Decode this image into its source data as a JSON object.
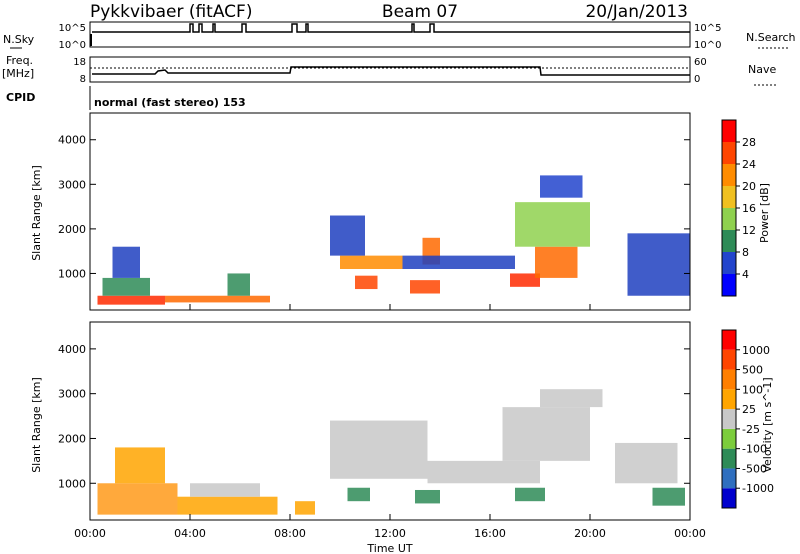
{
  "header": {
    "station": "Pykkvibaer (fitACF)",
    "beam": "Beam 07",
    "date": "20/Jan/2013"
  },
  "strips": {
    "nsky_label": "N.Sky",
    "nsky_ticks": [
      "10^5",
      "10^0"
    ],
    "nsearch_label": "N.Search",
    "nsearch_ticks": [
      "10^5",
      "10^0"
    ],
    "freq_label": "Freq.",
    "freq_unit": "[MHz]",
    "freq_ticks": [
      "18",
      "8"
    ],
    "nave_label": "Nave",
    "nave_ticks": [
      "60",
      "0"
    ],
    "cpid_label": "CPID",
    "cpid_text": "normal (fast stereo) 153"
  },
  "chart_data": [
    {
      "type": "heatmap",
      "name": "power",
      "ylabel": "Slant Range [km]",
      "ylim": [
        180,
        4600
      ],
      "y_ticks": [
        "4000",
        "3000",
        "2000",
        "1000"
      ],
      "colorbar_label": "Power [dB]",
      "colorbar_ticks": [
        "28",
        "24",
        "20",
        "16",
        "12",
        "8",
        "4"
      ],
      "colorbar_colors": [
        "#0000ff",
        "#2244cc",
        "#2e8b57",
        "#8fd14f",
        "#f0c020",
        "#ff8c00",
        "#ff4500",
        "#ff0000"
      ],
      "regions": [
        {
          "t0": 0.3,
          "t1": 3.0,
          "r0": 300,
          "r1": 500,
          "color": "#ff2a00"
        },
        {
          "t0": 0.5,
          "t1": 2.4,
          "r0": 500,
          "r1": 900,
          "color": "#2e8b57"
        },
        {
          "t0": 0.9,
          "t1": 2.0,
          "r0": 900,
          "r1": 1600,
          "color": "#1f3fbf"
        },
        {
          "t0": 3.0,
          "t1": 7.2,
          "r0": 350,
          "r1": 500,
          "color": "#ff6a00"
        },
        {
          "t0": 5.5,
          "t1": 6.4,
          "r0": 500,
          "r1": 1000,
          "color": "#2e8b57"
        },
        {
          "t0": 10.0,
          "t1": 12.5,
          "r0": 1100,
          "r1": 1400,
          "color": "#ff8c00"
        },
        {
          "t0": 9.6,
          "t1": 11.0,
          "r0": 1400,
          "r1": 2300,
          "color": "#1f3fbf"
        },
        {
          "t0": 10.6,
          "t1": 11.5,
          "r0": 650,
          "r1": 950,
          "color": "#ff4500"
        },
        {
          "t0": 12.8,
          "t1": 14.0,
          "r0": 550,
          "r1": 850,
          "color": "#ff4500"
        },
        {
          "t0": 13.3,
          "t1": 14.0,
          "r0": 1200,
          "r1": 1800,
          "color": "#ff6a00"
        },
        {
          "t0": 12.5,
          "t1": 17.0,
          "r0": 1100,
          "r1": 1400,
          "color": "#1f3fbf"
        },
        {
          "t0": 16.8,
          "t1": 18.0,
          "r0": 700,
          "r1": 1000,
          "color": "#ff2a00"
        },
        {
          "t0": 17.8,
          "t1": 19.5,
          "r0": 900,
          "r1": 1600,
          "color": "#ff6a00"
        },
        {
          "t0": 17.0,
          "t1": 20.0,
          "r0": 1600,
          "r1": 2600,
          "color": "#8fd14f"
        },
        {
          "t0": 18.0,
          "t1": 19.7,
          "r0": 2700,
          "r1": 3200,
          "color": "#2244cc"
        },
        {
          "t0": 21.5,
          "t1": 24.0,
          "r0": 500,
          "r1": 1900,
          "color": "#1f3fbf"
        }
      ]
    },
    {
      "type": "heatmap",
      "name": "velocity",
      "ylabel": "Slant Range [km]",
      "ylim": [
        180,
        4600
      ],
      "y_ticks": [
        "4000",
        "3000",
        "2000",
        "1000"
      ],
      "xlabel": "Time UT",
      "x_ticks": [
        "00:00",
        "04:00",
        "08:00",
        "12:00",
        "16:00",
        "20:00",
        "00:00"
      ],
      "colorbar_label": "Velocity [m s^-1]",
      "colorbar_ticks": [
        "1000",
        "500",
        "100",
        "25",
        "-25",
        "-100",
        "-500",
        "-1000"
      ],
      "colorbar_colors": [
        "#0000cd",
        "#2f6fbf",
        "#2e8b57",
        "#7ccd3c",
        "#c8c8c8",
        "#ffa500",
        "#ff7f00",
        "#ff4500",
        "#ff0000"
      ],
      "regions": [
        {
          "t0": 0.3,
          "t1": 3.5,
          "r0": 300,
          "r1": 1000,
          "color": "#ff9a1a"
        },
        {
          "t0": 1.0,
          "t1": 3.0,
          "r0": 1000,
          "r1": 1800,
          "color": "#ffa500"
        },
        {
          "t0": 3.5,
          "t1": 7.5,
          "r0": 300,
          "r1": 700,
          "color": "#ffa500"
        },
        {
          "t0": 4.0,
          "t1": 6.8,
          "r0": 700,
          "r1": 1000,
          "color": "#c8c8c8"
        },
        {
          "t0": 8.2,
          "t1": 9.0,
          "r0": 300,
          "r1": 600,
          "color": "#ffa500"
        },
        {
          "t0": 9.6,
          "t1": 13.5,
          "r0": 1100,
          "r1": 2400,
          "color": "#c8c8c8"
        },
        {
          "t0": 10.3,
          "t1": 11.2,
          "r0": 600,
          "r1": 900,
          "color": "#2e8b57"
        },
        {
          "t0": 13.0,
          "t1": 14.0,
          "r0": 550,
          "r1": 850,
          "color": "#2e8b57"
        },
        {
          "t0": 13.5,
          "t1": 18.0,
          "r0": 1000,
          "r1": 1500,
          "color": "#c8c8c8"
        },
        {
          "t0": 16.5,
          "t1": 20.0,
          "r0": 1500,
          "r1": 2700,
          "color": "#c8c8c8"
        },
        {
          "t0": 17.0,
          "t1": 18.2,
          "r0": 600,
          "r1": 900,
          "color": "#2e8b57"
        },
        {
          "t0": 18.0,
          "t1": 20.5,
          "r0": 2700,
          "r1": 3100,
          "color": "#c8c8c8"
        },
        {
          "t0": 21.0,
          "t1": 23.5,
          "r0": 1000,
          "r1": 1900,
          "color": "#c8c8c8"
        },
        {
          "t0": 22.5,
          "t1": 23.8,
          "r0": 500,
          "r1": 900,
          "color": "#2e8b57"
        }
      ]
    }
  ]
}
